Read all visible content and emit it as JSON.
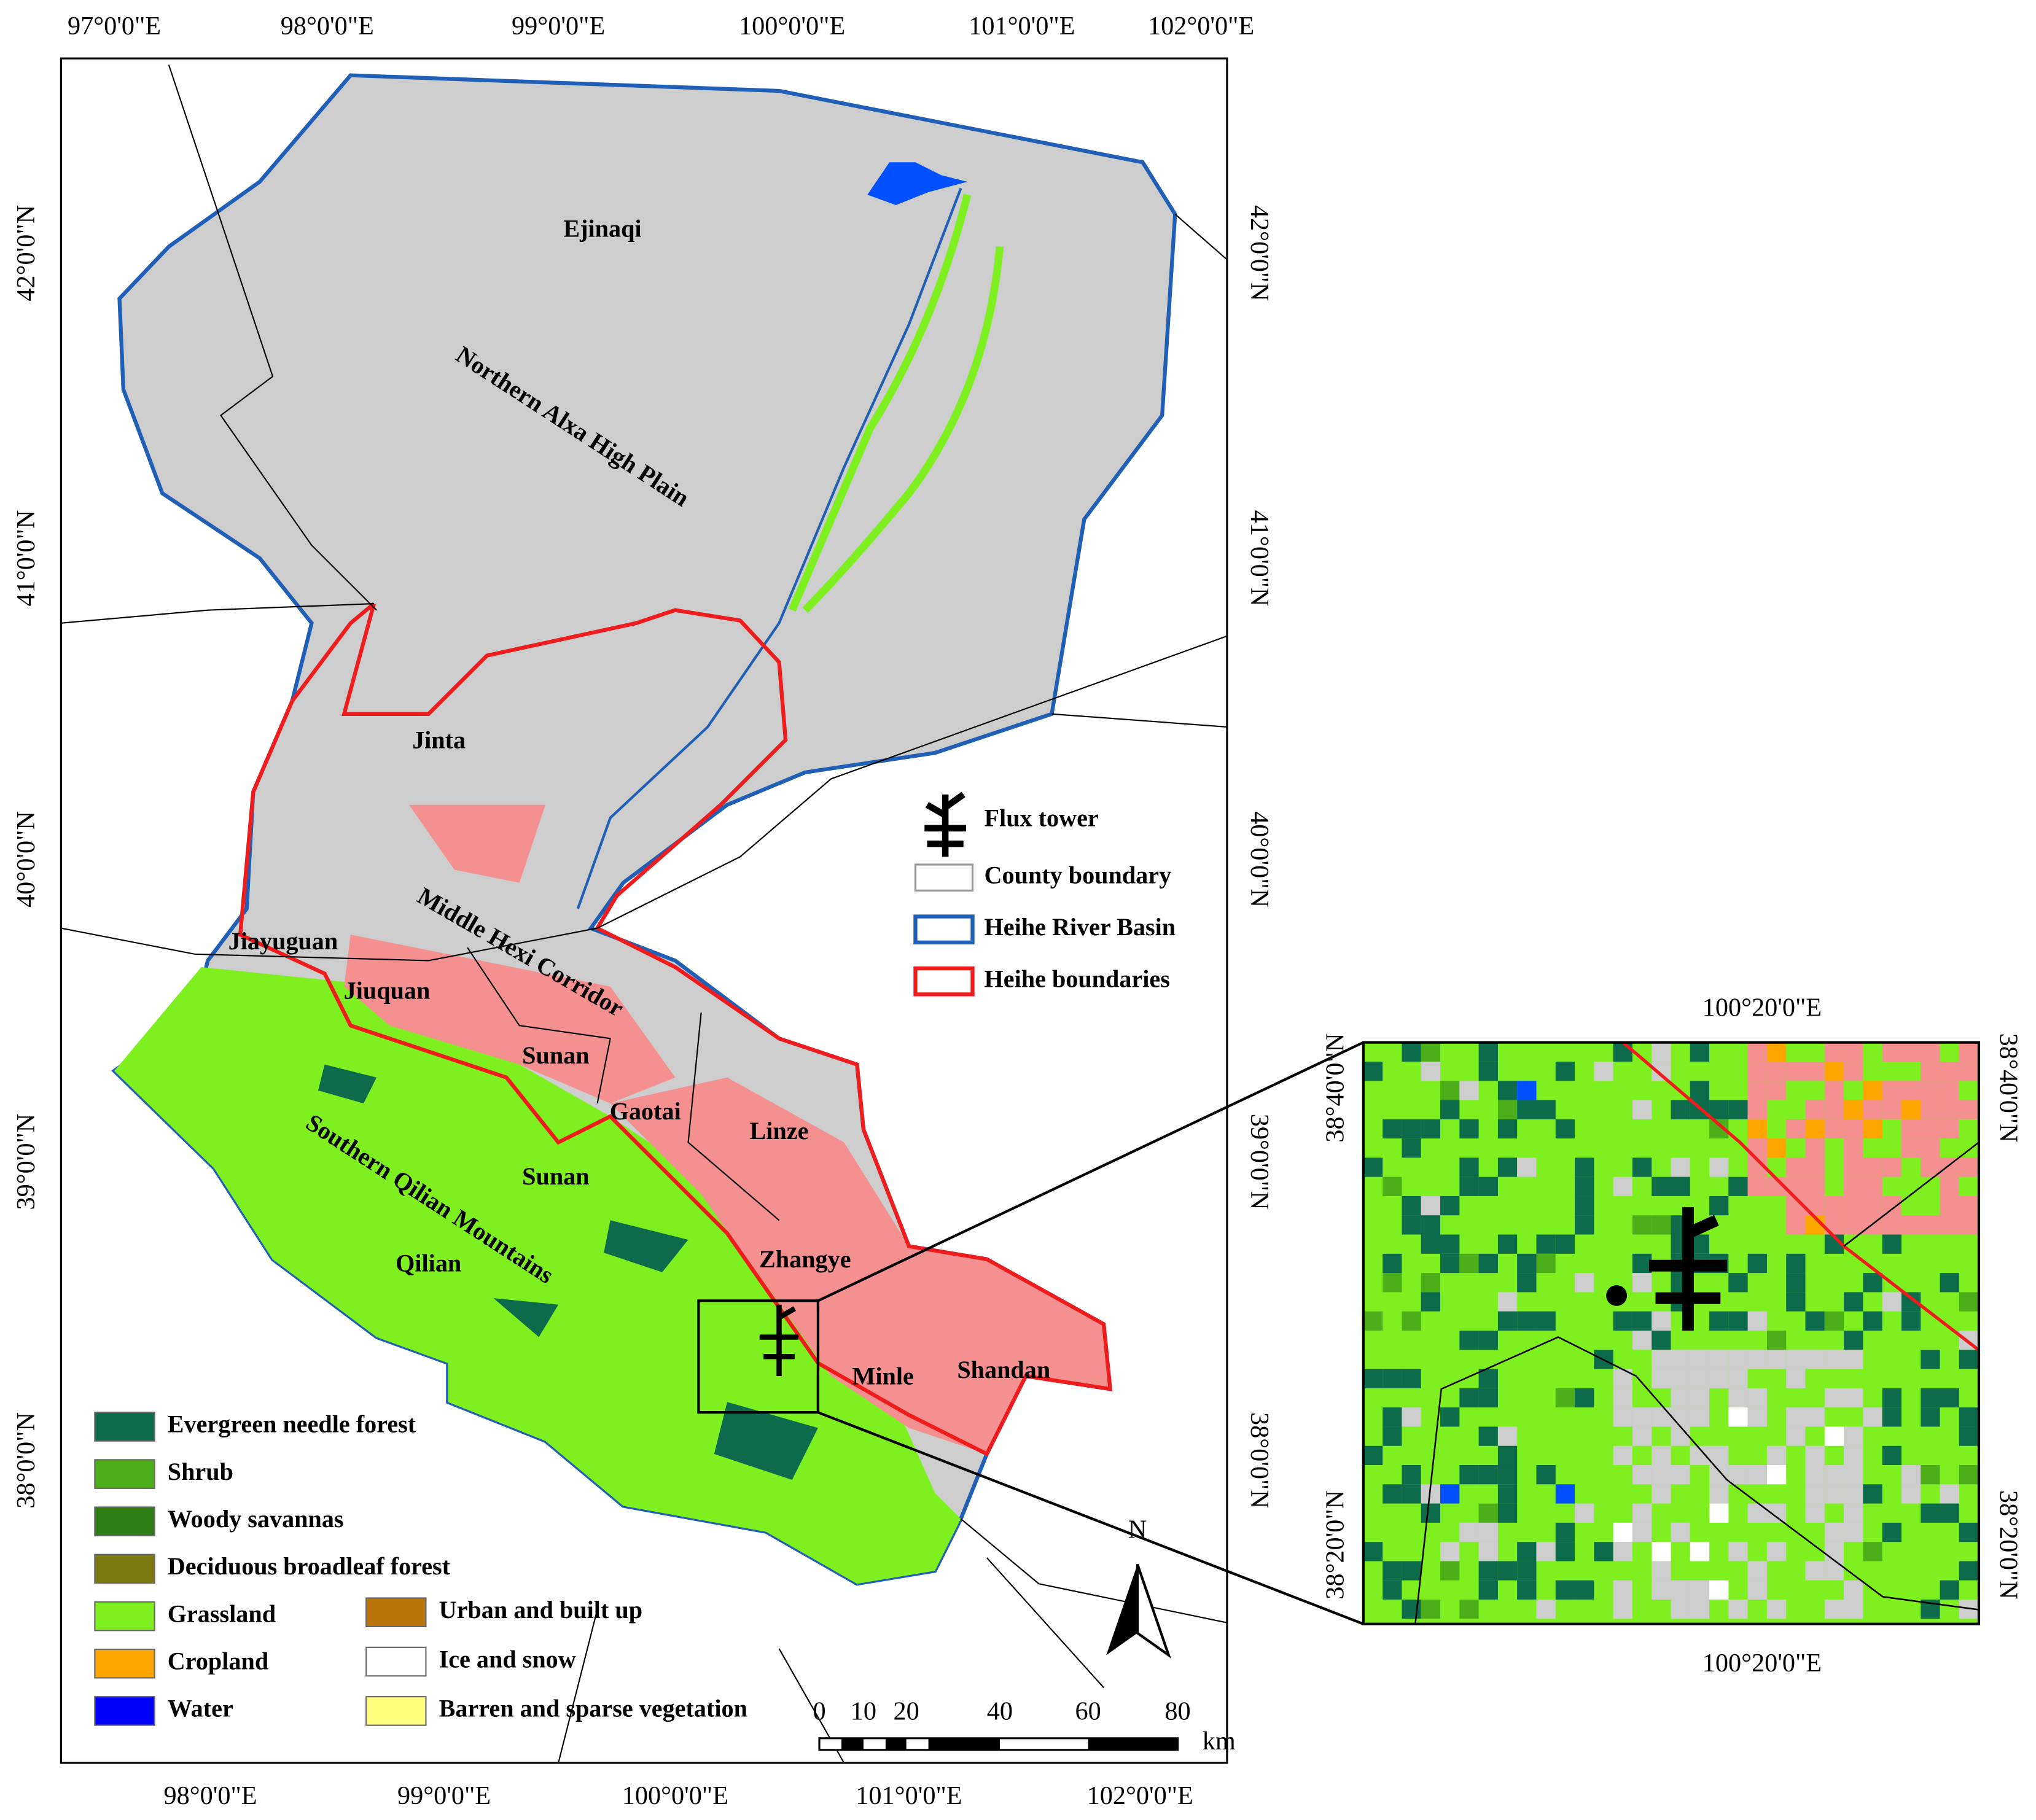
{
  "map": {
    "top_axis_labels": [
      "97°0'0\"E",
      "98°0'0\"E",
      "99°0'0\"E",
      "100°0'0\"E",
      "101°0'0\"E",
      "102°0'0\"E"
    ],
    "bottom_axis_labels": [
      "98°0'0\"E",
      "99°0'0\"E",
      "100°0'0\"E",
      "101°0'0\"E",
      "102°0'0\"E"
    ],
    "left_axis_labels": [
      "42°0'0\"N",
      "41°0'0\"N",
      "40°0'0\"N",
      "39°0'0\"N",
      "38°0'0\"N"
    ],
    "right_axis_labels": [
      "42°0'0\"N",
      "41°0'0\"N",
      "40°0'0\"N",
      "39°0'0\"N",
      "38°0'0\"N"
    ],
    "regions": [
      "Northern Alxa High Plain",
      "Middle Hexi Corridor",
      "Southern Qilian Mountains"
    ],
    "places": [
      "Ejinaqi",
      "Jinta",
      "Jiayuguan",
      "Jiuquan",
      "Sunan",
      "Gaotai",
      "Linze",
      "Sunan",
      "Qilian",
      "Zhangye",
      "Minle",
      "Shandan"
    ],
    "boundary_legend": [
      "Flux tower",
      "County boundary",
      "Heihe River Basin",
      "Heihe boundaries"
    ],
    "land_cover_legend": [
      {
        "label": "Evergreen needle forest",
        "color": "#0b6b4a"
      },
      {
        "label": "Shrub",
        "color": "#4caf1a"
      },
      {
        "label": "Woody savannas",
        "color": "#2e7d12"
      },
      {
        "label": "Deciduous broadleaf forest",
        "color": "#7a7a10"
      },
      {
        "label": "Grassland",
        "color": "#7ef01f"
      },
      {
        "label": "Cropland",
        "color": "#ffa500"
      },
      {
        "label": "Water",
        "color": "#0000ff"
      },
      {
        "label": "Urban and built up",
        "color": "#b8730a"
      },
      {
        "label": "Ice and snow",
        "color": "#ffffff"
      },
      {
        "label": "Barren and sparse vegetation",
        "color": "#ffff80"
      }
    ],
    "scale_bar": {
      "ticks": [
        "0",
        "10",
        "20",
        "40",
        "60",
        "80"
      ],
      "unit": "km"
    },
    "north_arrow": "N"
  },
  "inset": {
    "top_label": "100°20'0\"E",
    "bottom_label": "100°20'0\"E",
    "left_labels": [
      "38°40'0\"N",
      "38°20'0\"N"
    ],
    "right_labels": [
      "38°40'0\"N",
      "38°20'0\"N"
    ]
  }
}
